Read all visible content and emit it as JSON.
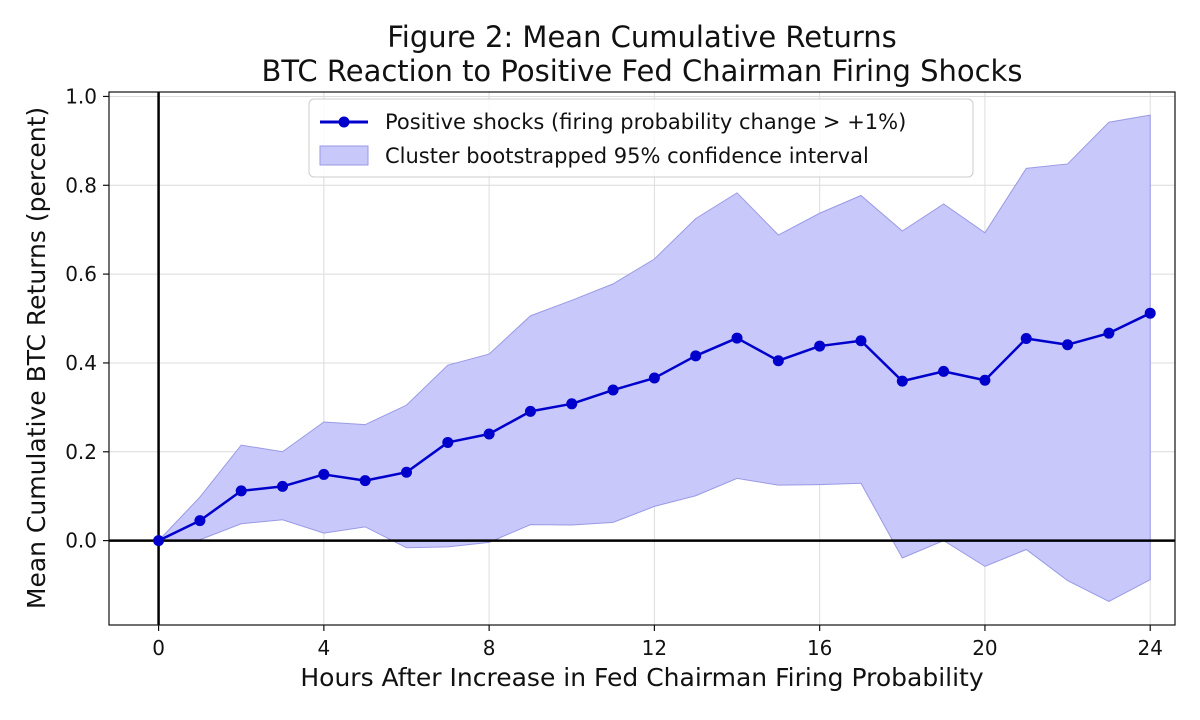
{
  "chart_data": {
    "type": "line",
    "title_line1": "Figure 2: Mean Cumulative Returns",
    "title_line2": "BTC Reaction to Positive Fed Chairman Firing Shocks",
    "xlabel": "Hours After Increase in Fed Chairman Firing Probability",
    "ylabel": "Mean Cumulative BTC Returns (percent)",
    "xlim": [
      -1.2,
      24.6
    ],
    "ylim": [
      -0.19,
      1.01
    ],
    "xticks": [
      0,
      4,
      8,
      12,
      16,
      20,
      24
    ],
    "yticks": [
      0.0,
      0.2,
      0.4,
      0.6,
      0.8,
      1.0
    ],
    "ytick_labels": [
      "0.0",
      "0.2",
      "0.4",
      "0.6",
      "0.8",
      "1.0"
    ],
    "grid": true,
    "legend_position": "top-center",
    "x": [
      0,
      1,
      2,
      3,
      4,
      5,
      6,
      7,
      8,
      9,
      10,
      11,
      12,
      13,
      14,
      15,
      16,
      17,
      18,
      19,
      20,
      21,
      22,
      23,
      24
    ],
    "series": [
      {
        "name": "Positive shocks (firing probability change > +1%)",
        "color": "#0000cc",
        "values": [
          0.0,
          0.045,
          0.112,
          0.122,
          0.149,
          0.135,
          0.154,
          0.221,
          0.24,
          0.291,
          0.308,
          0.339,
          0.366,
          0.416,
          0.456,
          0.405,
          0.438,
          0.45,
          0.359,
          0.381,
          0.361,
          0.455,
          0.441,
          0.467,
          0.512
        ]
      }
    ],
    "confidence_band": {
      "name": "Cluster bootstrapped 95% confidence interval",
      "color": "#c8c8fa",
      "edge_color": "#9a9ae6",
      "lower": [
        0.0,
        0.002,
        0.038,
        0.047,
        0.017,
        0.031,
        -0.016,
        -0.014,
        -0.004,
        0.036,
        0.035,
        0.041,
        0.077,
        0.101,
        0.14,
        0.125,
        0.126,
        0.129,
        -0.039,
        0.0,
        -0.058,
        -0.02,
        -0.09,
        -0.137,
        -0.088
      ],
      "upper": [
        0.0,
        0.098,
        0.215,
        0.2,
        0.267,
        0.261,
        0.305,
        0.395,
        0.42,
        0.506,
        0.541,
        0.578,
        0.634,
        0.725,
        0.783,
        0.688,
        0.737,
        0.777,
        0.697,
        0.758,
        0.693,
        0.838,
        0.848,
        0.942,
        0.958
      ]
    }
  }
}
